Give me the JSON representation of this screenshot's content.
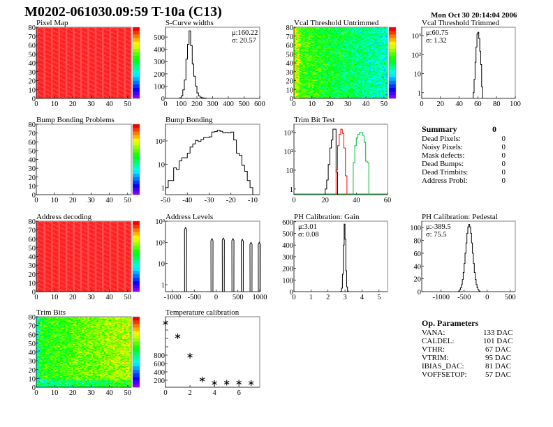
{
  "header": {
    "title": "M0202-061030.09:59 T-10a (C13)",
    "date": "Mon Oct 30 20:14:04 2006"
  },
  "summary": {
    "title": "Summary",
    "total": "0",
    "items": [
      {
        "label": "Dead Pixels:",
        "value": "0"
      },
      {
        "label": "Noisy Pixels:",
        "value": "0"
      },
      {
        "label": "Mask defects:",
        "value": "0"
      },
      {
        "label": "Dead Bumps:",
        "value": "0"
      },
      {
        "label": "Dead Trimbits:",
        "value": "0"
      },
      {
        "label": "Address Probl:",
        "value": "0"
      }
    ]
  },
  "op_parameters": {
    "title": "Op. Parameters",
    "items": [
      {
        "label": "VANA:",
        "value": "133 DAC"
      },
      {
        "label": "CALDEL:",
        "value": "101 DAC"
      },
      {
        "label": "VTHR:",
        "value": "67 DAC"
      },
      {
        "label": "VTRIM:",
        "value": "95 DAC"
      },
      {
        "label": "IBIAS_DAC:",
        "value": "81 DAC"
      },
      {
        "label": "VOFFSETOP:",
        "value": "57 DAC"
      }
    ]
  },
  "colors": {
    "palette": "rainbow",
    "hist_line": "#000000",
    "trim_series": [
      "#000000",
      "#ff0000",
      "#00bb33"
    ]
  },
  "chart_data": [
    {
      "id": "pixel_map",
      "title": "Pixel Map",
      "type": "heatmap",
      "xlim": [
        0,
        52
      ],
      "ylim": [
        0,
        80
      ],
      "zlim": [
        0,
        10
      ],
      "fill": "uniform",
      "zvalue": 10,
      "xticks": [
        0,
        10,
        20,
        30,
        40,
        50
      ],
      "yticks": [
        0,
        10,
        20,
        30,
        40,
        50,
        60,
        70,
        80
      ]
    },
    {
      "id": "scurve",
      "title": "S-Curve widths",
      "type": "bar",
      "xlim": [
        0,
        600
      ],
      "ylim": [
        0,
        580
      ],
      "log": false,
      "xticks": [
        0,
        100,
        200,
        300,
        400,
        500,
        600
      ],
      "yticks": [
        0,
        100,
        200,
        300,
        400,
        500
      ],
      "stats": [
        "μ:160.22",
        "σ: 20.57"
      ],
      "stats_pos": "top-right",
      "bins": {
        "lo": 90,
        "width": 10,
        "counts": [
          5,
          20,
          70,
          150,
          320,
          440,
          550,
          430,
          280,
          180,
          100,
          45,
          20,
          10,
          5,
          3,
          2
        ]
      }
    },
    {
      "id": "vcal_untrimmed",
      "title": "Vcal Threshold Untrimmed",
      "type": "heatmap",
      "xlim": [
        0,
        52
      ],
      "ylim": [
        0,
        80
      ],
      "zlim": [
        75,
        120
      ],
      "fill": "gradient-left-to-right",
      "zleft": 103,
      "zright": 92,
      "xticks": [
        0,
        10,
        20,
        30,
        40,
        50
      ],
      "yticks": [
        0,
        10,
        20,
        30,
        40,
        50,
        60,
        70,
        80
      ]
    },
    {
      "id": "vcal_trimmed",
      "title": "Vcal Threshold Trimmed",
      "type": "bar",
      "xlim": [
        0,
        100
      ],
      "ylim": [
        0.5,
        2750
      ],
      "log": true,
      "xticks": [
        0,
        20,
        40,
        60,
        80,
        100
      ],
      "yticks": [
        1,
        10,
        100,
        1000
      ],
      "ytick_labels": [
        "1",
        "10",
        "10²",
        "10³"
      ],
      "stats": [
        "μ:60.75",
        "σ: 1.32"
      ],
      "stats_pos": "top-left",
      "bins": {
        "lo": 55,
        "width": 1,
        "counts": [
          1,
          5,
          40,
          250,
          1200,
          1500,
          700,
          150,
          30,
          2
        ]
      }
    },
    {
      "id": "bump_problems",
      "title": "Bump Bonding Problems",
      "type": "heatmap",
      "xlim": [
        0,
        52
      ],
      "ylim": [
        0,
        80
      ],
      "zlim": [
        0,
        2
      ],
      "fill": "empty",
      "xticks": [
        0,
        10,
        20,
        30,
        40,
        50
      ],
      "yticks": [
        0,
        10,
        20,
        30,
        40,
        50,
        60,
        70,
        80
      ]
    },
    {
      "id": "bump_bonding",
      "title": "Bump Bonding",
      "type": "bar",
      "xlim": [
        -50,
        -6.8
      ],
      "ylim": [
        0.5,
        520
      ],
      "log": true,
      "xticks": [
        -50,
        -40,
        -30,
        -20,
        -10
      ],
      "yticks": [
        1,
        10,
        100
      ],
      "ytick_labels": [
        "1",
        "10",
        "10²"
      ],
      "bins": {
        "lo": -50,
        "width": 1.25,
        "counts": [
          1,
          2,
          2,
          7,
          6,
          14,
          19,
          19,
          30,
          55,
          75,
          105,
          95,
          115,
          140,
          140,
          150,
          240,
          250,
          290,
          260,
          220,
          230,
          220,
          240,
          110,
          30,
          24,
          9,
          5,
          2,
          1
        ]
      }
    },
    {
      "id": "trim_bit",
      "title": "Trim Bit Test",
      "type": "bar",
      "xlim": [
        0,
        60
      ],
      "ylim": [
        0.5,
        2750
      ],
      "log": true,
      "xticks": [
        0,
        20,
        40,
        60
      ],
      "yticks": [
        1,
        10,
        100,
        1000
      ],
      "ytick_labels": [
        "1",
        "10",
        "10²",
        "10³"
      ],
      "series": [
        {
          "color": "#000000",
          "bins": {
            "lo": 20,
            "width": 1,
            "counts": [
              1,
              3,
              20,
              150,
              400,
              1500,
              1500,
              8
            ]
          }
        },
        {
          "color": "#ff0000",
          "bins": {
            "lo": 27,
            "width": 1,
            "counts": [
              10,
              200,
              800,
              1500,
              900,
              150,
              5,
              0
            ]
          }
        },
        {
          "color": "#00bb33",
          "bins": {
            "lo": 38,
            "width": 1,
            "counts": [
              25,
              200,
              500,
              800,
              1000,
              1000,
              700,
              300,
              30,
              25
            ]
          }
        }
      ]
    },
    {
      "id": "address_decoding",
      "title": "Address decoding",
      "type": "heatmap",
      "xlim": [
        0,
        52
      ],
      "ylim": [
        0,
        80
      ],
      "zlim": [
        0,
        1
      ],
      "fill": "uniform",
      "zvalue": 1,
      "xticks": [
        0,
        10,
        20,
        30,
        40,
        50
      ],
      "yticks": [
        0,
        10,
        20,
        30,
        40,
        50,
        60,
        70,
        80
      ]
    },
    {
      "id": "address_levels",
      "title": "Address Levels",
      "type": "peaks",
      "xlim": [
        -1160,
        1000
      ],
      "ylim": [
        0.47,
        1000
      ],
      "log": true,
      "xticks": [
        -1000,
        -500,
        0,
        500,
        1000
      ],
      "yticks": [
        1,
        10,
        100,
        1000
      ],
      "ytick_labels": [
        "1",
        "10",
        "10²",
        "10³"
      ],
      "peaks": [
        {
          "center": -700,
          "height": 500
        },
        {
          "center": -95,
          "height": 150
        },
        {
          "center": 165,
          "height": 160
        },
        {
          "center": 385,
          "height": 150
        },
        {
          "center": 600,
          "height": 140
        },
        {
          "center": 800,
          "height": 100
        },
        {
          "center": 990,
          "height": 100
        }
      ]
    },
    {
      "id": "gain",
      "title": "PH Calibration: Gain",
      "type": "bar",
      "xlim": [
        0,
        5.5
      ],
      "ylim": [
        0,
        605
      ],
      "log": false,
      "xticks": [
        0,
        1,
        2,
        3,
        4,
        5
      ],
      "yticks": [
        0,
        100,
        200,
        300,
        400,
        500,
        600
      ],
      "stats": [
        "μ:3.01",
        "σ: 0.08"
      ],
      "stats_pos": "top-left",
      "bins": {
        "lo": 2.75,
        "width": 0.05,
        "counts": [
          3,
          30,
          150,
          400,
          580,
          450,
          180,
          40,
          5
        ]
      }
    },
    {
      "id": "pedestal",
      "title": "PH Calibration: Pedestal",
      "type": "bar",
      "xlim": [
        -1420,
        610
      ],
      "ylim": [
        0,
        110
      ],
      "log": false,
      "xticks": [
        -1000,
        -500,
        0,
        500
      ],
      "yticks": [
        0,
        20,
        40,
        60,
        80,
        100
      ],
      "stats": [
        "μ:-389.5",
        "σ: 75.5"
      ],
      "stats_pos": "top-left",
      "bins": {
        "lo": -620,
        "width": 20,
        "counts": [
          1,
          3,
          6,
          11,
          19,
          30,
          44,
          60,
          76,
          91,
          101,
          105,
          101,
          91,
          76,
          60,
          44,
          30,
          19,
          11,
          6,
          3,
          1
        ]
      }
    },
    {
      "id": "trim_bits",
      "title": "Trim Bits",
      "type": "heatmap",
      "xlim": [
        0,
        52
      ],
      "ylim": [
        0,
        80
      ],
      "zlim": [
        0,
        16
      ],
      "fill": "gradient-left-to-right",
      "zleft": 9,
      "zright": 11.5,
      "xticks": [
        0,
        10,
        20,
        30,
        40,
        50
      ],
      "yticks": [
        0,
        10,
        20,
        30,
        40,
        50,
        60,
        70,
        80
      ]
    },
    {
      "id": "temperature",
      "title": "Temperature calibration",
      "type": "scatter",
      "xlim": [
        0,
        7.7
      ],
      "ylim": [
        33,
        1717
      ],
      "log": false,
      "xticks": [
        0,
        2,
        4,
        6
      ],
      "yticks": [
        200,
        400,
        600,
        800
      ],
      "minor_yticks": [
        1000,
        1200,
        1400,
        1600
      ],
      "points": [
        [
          0,
          1580
        ],
        [
          1,
          1270
        ],
        [
          2,
          800
        ],
        [
          3,
          230
        ],
        [
          4,
          150
        ],
        [
          5,
          160
        ],
        [
          6,
          160
        ],
        [
          7,
          150
        ]
      ]
    }
  ]
}
